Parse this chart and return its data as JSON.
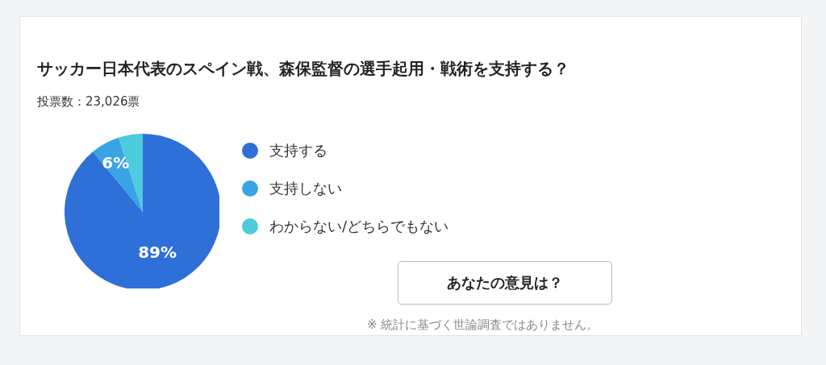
{
  "chart_data": {
    "type": "pie",
    "title": "サッカー日本代表のスペイン戦、森保監督の選手起用・戦術を支持する？",
    "subtitle": "投票数：23,026票",
    "categories": [
      "支持する",
      "支持しない",
      "わからない/どちらでもない"
    ],
    "values": [
      89,
      6,
      5
    ],
    "colors": [
      "#2e6fd8",
      "#3aa3e3",
      "#4ccbdc"
    ],
    "value_labels": [
      "89%",
      "6%",
      null
    ],
    "legend": "right",
    "annotations": [
      "あなたの意見は？",
      "※ 統計に基づく世論調査ではありません。"
    ]
  }
}
